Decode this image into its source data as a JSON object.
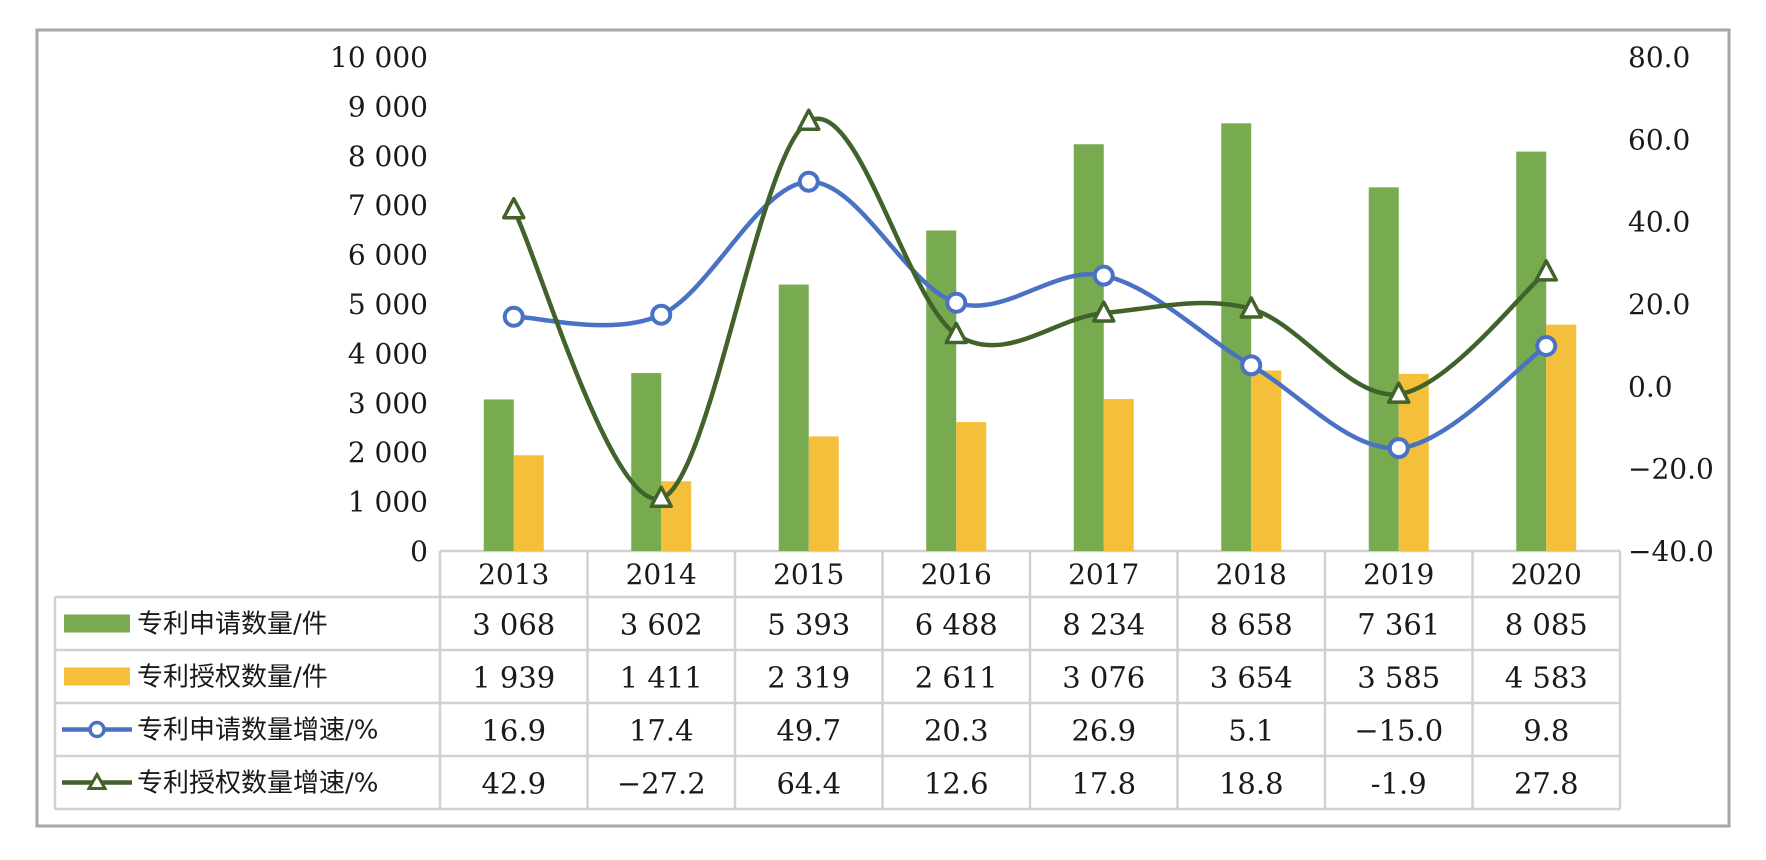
{
  "chart_data": {
    "type": "bar",
    "categories": [
      "2013",
      "2014",
      "2015",
      "2016",
      "2017",
      "2018",
      "2019",
      "2020"
    ],
    "series": [
      {
        "name": "专利申请数量/件",
        "kind": "bar",
        "axis": "left",
        "color": "#78aa50",
        "values": [
          3068,
          3602,
          5393,
          6488,
          8234,
          8658,
          7361,
          8085
        ],
        "labels": [
          "3 068",
          "3 602",
          "5 393",
          "6 488",
          "8 234",
          "8 658",
          "7 361",
          "8 085"
        ]
      },
      {
        "name": "专利授权数量/件",
        "kind": "bar",
        "axis": "left",
        "color": "#f4c03c",
        "values": [
          1939,
          1411,
          2319,
          2611,
          3076,
          3654,
          3585,
          4583
        ],
        "labels": [
          "1 939",
          "1 411",
          "2 319",
          "2 611",
          "3 076",
          "3 654",
          "3 585",
          "4 583"
        ]
      },
      {
        "name": "专利申请数量增速/%",
        "kind": "line",
        "marker": "circle",
        "axis": "right",
        "color": "#4a72c4",
        "values": [
          16.9,
          17.4,
          49.7,
          20.3,
          26.9,
          5.1,
          -15.0,
          9.8
        ],
        "labels": [
          "16.9",
          "17.4",
          "49.7",
          "20.3",
          "26.9",
          "5.1",
          "−15.0",
          "9.8"
        ]
      },
      {
        "name": "专利授权数量增速/%",
        "kind": "line",
        "marker": "triangle",
        "axis": "right",
        "color": "#41622b",
        "values": [
          42.9,
          -27.2,
          64.4,
          12.6,
          17.8,
          18.8,
          -1.9,
          27.8
        ],
        "labels": [
          "42.9",
          "−27.2",
          "64.4",
          "12.6",
          "17.8",
          "18.8",
          "-1.9",
          "27.8"
        ]
      }
    ],
    "ylim_left": [
      0,
      10000
    ],
    "ylim_right": [
      -40,
      80
    ],
    "yticks_left": [
      "0",
      "1 000",
      "2 000",
      "3 000",
      "4 000",
      "5 000",
      "6 000",
      "7 000",
      "8 000",
      "9 000",
      "10 000"
    ],
    "yticks_right": [
      "−40.0",
      "−20.0",
      "0.0",
      "20.0",
      "40.0",
      "60.0",
      "80.0"
    ],
    "legend": "data-table-bottom",
    "grid": false
  }
}
